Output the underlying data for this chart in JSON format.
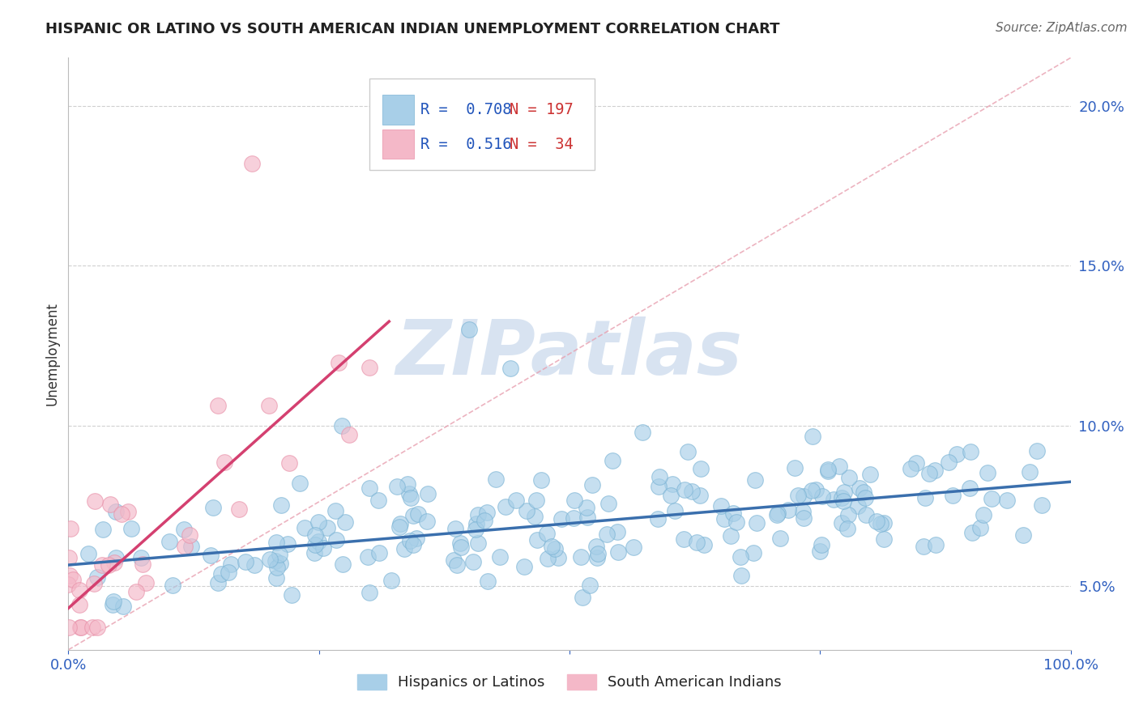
{
  "title": "HISPANIC OR LATINO VS SOUTH AMERICAN INDIAN UNEMPLOYMENT CORRELATION CHART",
  "source": "Source: ZipAtlas.com",
  "ylabel": "Unemployment",
  "xlim": [
    0,
    1.0
  ],
  "ylim": [
    0.03,
    0.215
  ],
  "yticks": [
    0.05,
    0.1,
    0.15,
    0.2
  ],
  "ytick_labels": [
    "5.0%",
    "10.0%",
    "15.0%",
    "20.0%"
  ],
  "xtick_labels": [
    "0.0%",
    "",
    "",
    "",
    "100.0%"
  ],
  "blue_R": 0.708,
  "blue_N": 197,
  "pink_R": 0.516,
  "pink_N": 34,
  "blue_color": "#a8cfe8",
  "pink_color": "#f4b8c8",
  "blue_edge_color": "#7ab3d4",
  "pink_edge_color": "#e890a8",
  "blue_line_color": "#3a6fad",
  "pink_line_color": "#d44070",
  "ref_line_color": "#e8a0b0",
  "watermark_text": "ZIPatlas",
  "watermark_color": "#c8d8ec",
  "legend_blue_label": "Hispanics or Latinos",
  "legend_pink_label": "South American Indians",
  "blue_intercept": 0.0565,
  "blue_slope": 0.026,
  "pink_intercept": 0.043,
  "pink_slope": 0.28,
  "pink_line_xmax": 0.32,
  "ref_line_x0": 0.0,
  "ref_line_y0": 0.03,
  "ref_line_x1": 1.0,
  "ref_line_y1": 0.215
}
